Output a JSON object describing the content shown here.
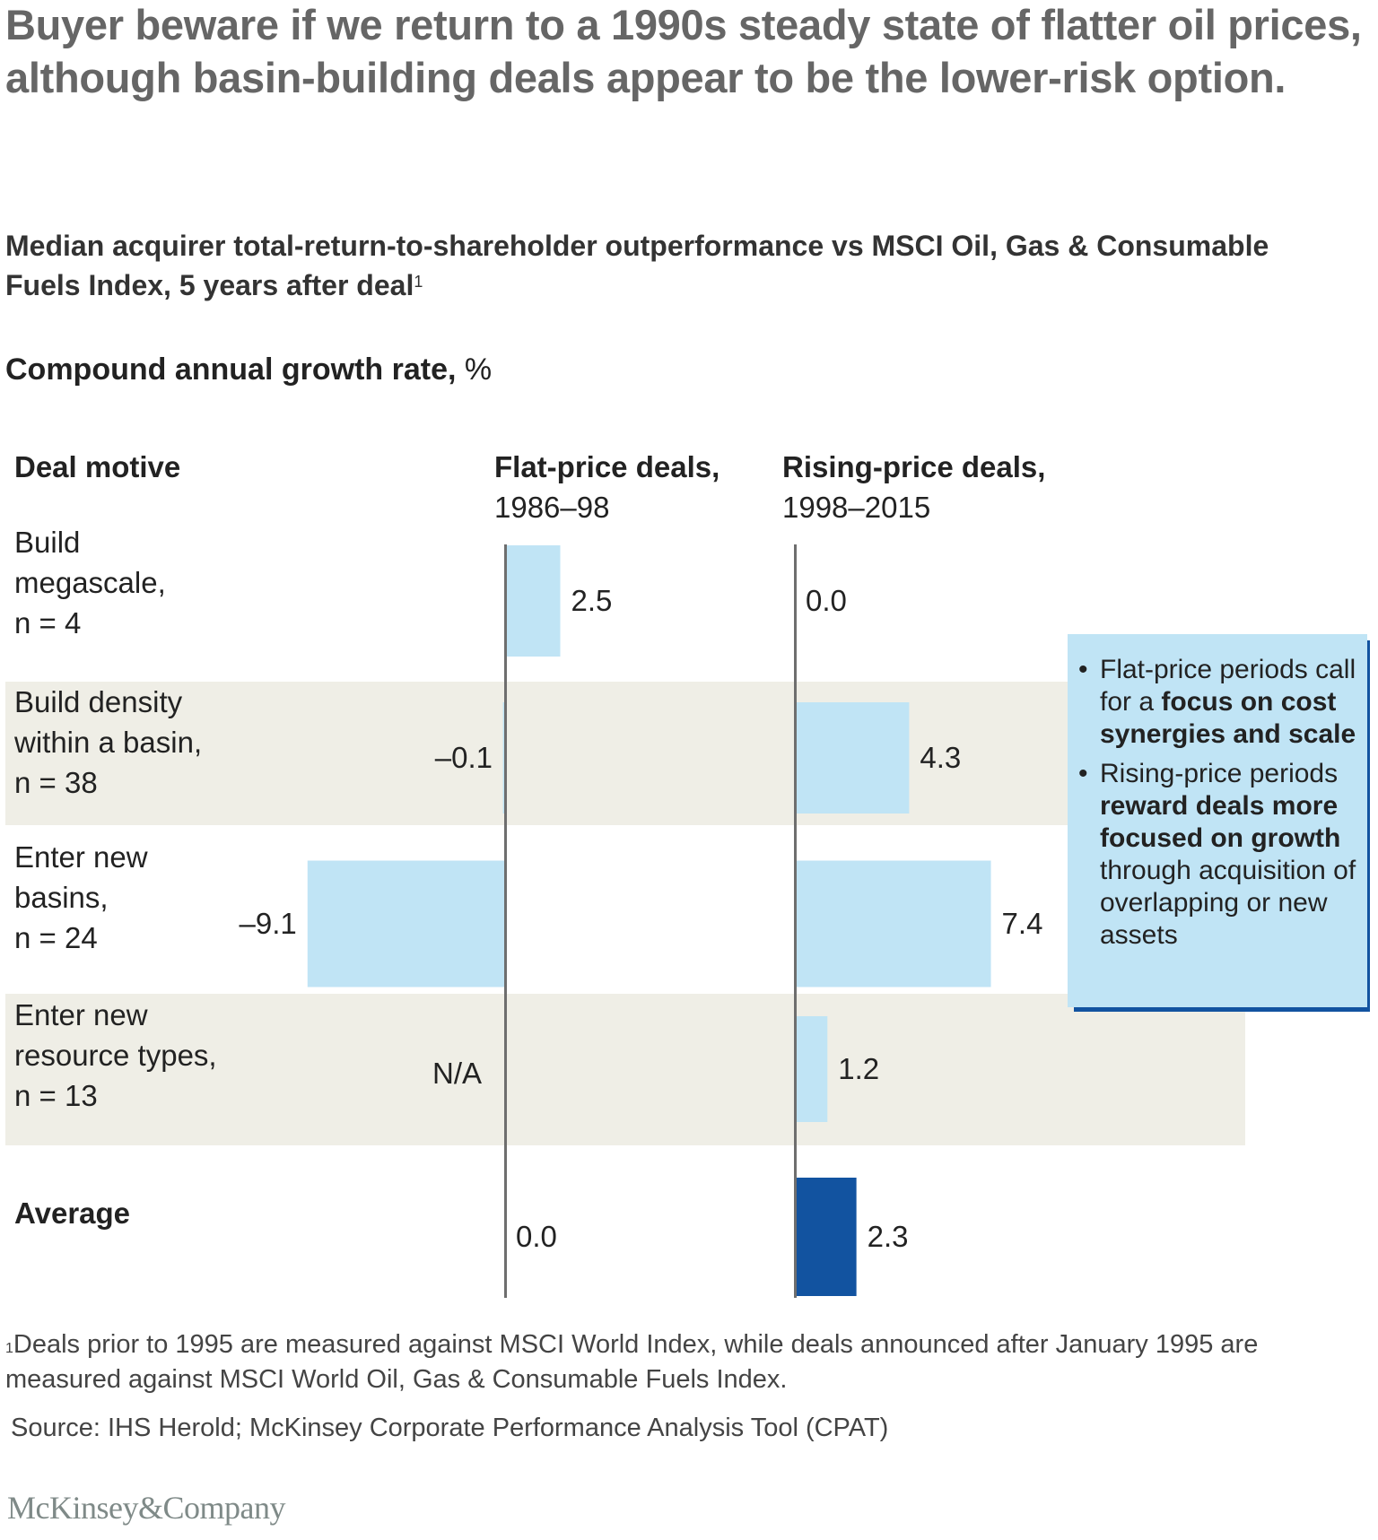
{
  "title": "Buyer beware if we return to a 1990s steady state of flatter oil prices, although basin-building deals appear to be the lower-risk option.",
  "subtitle": {
    "text": "Median acquirer total-return-to-shareholder outperformance vs MSCI Oil, Gas & Consumable Fuels Index, 5 years after deal",
    "footnote_marker": "1"
  },
  "unit": {
    "bold": "Compound annual growth rate,",
    "normal": " %"
  },
  "columns": {
    "motive": "Deal motive",
    "flat": {
      "title": "Flat-price deals,",
      "period": "1986–98"
    },
    "rising": {
      "title": "Rising-price deals,",
      "period": "1998–2015"
    }
  },
  "callout": {
    "items": [
      {
        "bullet": "•",
        "parts": [
          {
            "text": "Flat-price periods call for a ",
            "bold": false
          },
          {
            "text": "focus on cost synergies and scale",
            "bold": true
          }
        ]
      },
      {
        "bullet": "•",
        "parts": [
          {
            "text": "Rising-price periods ",
            "bold": false
          },
          {
            "text": "reward deals more focused on growth",
            "bold": true
          },
          {
            "text": " through acquisition of overlapping or new assets",
            "bold": false
          }
        ]
      }
    ]
  },
  "footnote": {
    "marker": "1",
    "text": "Deals prior to 1995 are measured against MSCI World Index, while deals announced after January 1995 are measured against MSCI World Oil, Gas & Consumable Fuels Index."
  },
  "source": "Source: IHS Herold; McKinsey Corporate Performance Analysis Tool (CPAT)",
  "logo": "McKinsey&Company",
  "colors": {
    "bar_light": "#c0e4f5",
    "bar_average": "#1253a0",
    "band": "#efeee6",
    "axis": "#6e6e6e"
  },
  "chart_data": {
    "type": "bar",
    "orientation": "horizontal",
    "title": "Median acquirer total-return-to-shareholder outperformance vs MSCI Oil, Gas & Consumable Fuels Index, 5 years after deal",
    "ylabel": "Deal motive",
    "xlabel": "Compound annual growth rate, %",
    "categories": [
      [
        "Build",
        "megascale,",
        "n = 4"
      ],
      [
        "Build density",
        "within a basin,",
        "n = 38"
      ],
      [
        "Enter new",
        "basins,",
        "n = 24"
      ],
      [
        "Enter new",
        "resource types,",
        "n = 13"
      ],
      [
        "Average"
      ]
    ],
    "category_names": [
      "Build megascale, n = 4",
      "Build density within a basin, n = 38",
      "Enter new basins, n = 24",
      "Enter new resource types, n = 13",
      "Average"
    ],
    "series": [
      {
        "name": "Flat-price deals, 1986–98",
        "values": [
          2.5,
          -0.1,
          -9.1,
          null,
          0.0
        ],
        "labels": [
          "2.5",
          "–0.1",
          "–9.1",
          "N/A",
          "0.0"
        ]
      },
      {
        "name": "Rising-price deals, 1998–2015",
        "values": [
          0.0,
          4.3,
          7.4,
          1.2,
          2.3
        ],
        "labels": [
          "0.0",
          "4.3",
          "7.4",
          "1.2",
          "2.3"
        ]
      }
    ],
    "highlight_category": "Average",
    "shaded_rows": [
      1,
      3
    ],
    "grid": false,
    "legend": "none"
  }
}
